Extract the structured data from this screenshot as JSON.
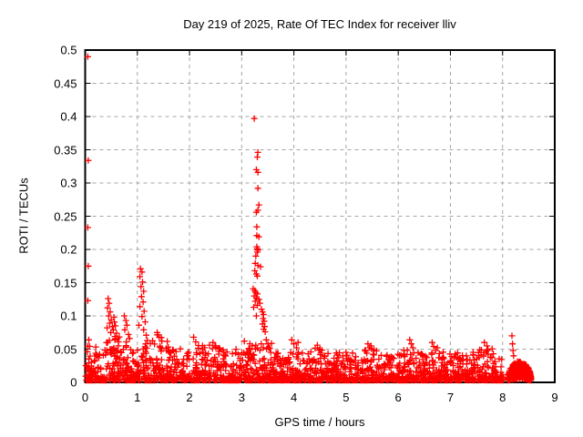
{
  "colors": {
    "background": "#ffffff",
    "series": "#ff0000",
    "grid": "#a6a6a6",
    "border": "#000000",
    "text": "#000000"
  },
  "chart_data": {
    "type": "scatter",
    "title": "Day 219 of 2025, Rate Of TEC Index for receiver lliv",
    "xlabel": "GPS time / hours",
    "ylabel": "ROTI / TECUs",
    "xlim": [
      0,
      9
    ],
    "ylim": [
      0,
      0.5
    ],
    "xticks": [
      0,
      1,
      2,
      3,
      4,
      5,
      6,
      7,
      8,
      9
    ],
    "xtick_labels": [
      "0",
      "1",
      "2",
      "3",
      "4",
      "5",
      "6",
      "7",
      "8",
      "9"
    ],
    "yticks": [
      0,
      0.05,
      0.1,
      0.15,
      0.2,
      0.25,
      0.3,
      0.35,
      0.4,
      0.45,
      0.5
    ],
    "ytick_labels": [
      "0",
      "0.05",
      "0.1",
      "0.15",
      "0.2",
      "0.25",
      "0.3",
      "0.35",
      "0.4",
      "0.45",
      "0.5"
    ],
    "grid": true,
    "grid_style": "dashed",
    "legend": "none",
    "marker": {
      "symbol": "plus",
      "color": "#ff0000",
      "size": 7
    },
    "series": [
      {
        "name": "ROTI",
        "color": "#ff0000",
        "outlier_points": [
          [
            0.05,
            0.49
          ],
          [
            0.06,
            0.334
          ],
          [
            0.05,
            0.233
          ],
          [
            0.06,
            0.175
          ],
          [
            0.05,
            0.123
          ],
          [
            0.07,
            0.064
          ],
          [
            0.04,
            0.046
          ],
          [
            0.44,
            0.126
          ],
          [
            0.46,
            0.119
          ],
          [
            0.43,
            0.112
          ],
          [
            0.48,
            0.106
          ],
          [
            0.45,
            0.1
          ],
          [
            0.5,
            0.094
          ],
          [
            0.47,
            0.089
          ],
          [
            0.52,
            0.084
          ],
          [
            0.55,
            0.098
          ],
          [
            0.56,
            0.091
          ],
          [
            0.58,
            0.085
          ],
          [
            0.54,
            0.079
          ],
          [
            0.6,
            0.074
          ],
          [
            0.57,
            0.069
          ],
          [
            0.62,
            0.066
          ],
          [
            0.64,
            0.061
          ],
          [
            0.49,
            0.075
          ],
          [
            0.42,
            0.082
          ],
          [
            0.75,
            0.1
          ],
          [
            0.78,
            0.093
          ],
          [
            0.8,
            0.086
          ],
          [
            0.76,
            0.079
          ],
          [
            0.83,
            0.072
          ],
          [
            0.85,
            0.066
          ],
          [
            0.79,
            0.061
          ],
          [
            1.06,
            0.171
          ],
          [
            1.09,
            0.166
          ],
          [
            1.05,
            0.159
          ],
          [
            1.1,
            0.151
          ],
          [
            1.07,
            0.144
          ],
          [
            1.12,
            0.137
          ],
          [
            1.08,
            0.129
          ],
          [
            1.11,
            0.121
          ],
          [
            1.05,
            0.114
          ],
          [
            1.13,
            0.107
          ],
          [
            1.09,
            0.099
          ],
          [
            1.15,
            0.091
          ],
          [
            1.03,
            0.086
          ],
          [
            1.12,
            0.079
          ],
          [
            1.17,
            0.071
          ],
          [
            1.19,
            0.063
          ],
          [
            1.38,
            0.075
          ],
          [
            1.42,
            0.068
          ],
          [
            1.47,
            0.062
          ],
          [
            2.08,
            0.068
          ],
          [
            2.12,
            0.061
          ],
          [
            2.45,
            0.06
          ],
          [
            2.5,
            0.055
          ],
          [
            3.05,
            0.062
          ],
          [
            3.24,
            0.397
          ],
          [
            3.31,
            0.346
          ],
          [
            3.3,
            0.339
          ],
          [
            3.28,
            0.32
          ],
          [
            3.31,
            0.316
          ],
          [
            3.31,
            0.292
          ],
          [
            3.33,
            0.267
          ],
          [
            3.31,
            0.259
          ],
          [
            3.28,
            0.256
          ],
          [
            3.29,
            0.234
          ],
          [
            3.29,
            0.221
          ],
          [
            3.33,
            0.219
          ],
          [
            3.29,
            0.204
          ],
          [
            3.3,
            0.201
          ],
          [
            3.31,
            0.199
          ],
          [
            3.3,
            0.196
          ],
          [
            3.27,
            0.19
          ],
          [
            3.26,
            0.179
          ],
          [
            3.31,
            0.176
          ],
          [
            3.36,
            0.174
          ],
          [
            3.25,
            0.168
          ],
          [
            3.28,
            0.163
          ],
          [
            3.3,
            0.16
          ],
          [
            3.22,
            0.141
          ],
          [
            3.25,
            0.138
          ],
          [
            3.27,
            0.135
          ],
          [
            3.3,
            0.133
          ],
          [
            3.24,
            0.13
          ],
          [
            3.28,
            0.127
          ],
          [
            3.33,
            0.125
          ],
          [
            3.26,
            0.122
          ],
          [
            3.35,
            0.119
          ],
          [
            3.3,
            0.116
          ],
          [
            3.23,
            0.113
          ],
          [
            3.38,
            0.11
          ],
          [
            3.4,
            0.106
          ],
          [
            3.42,
            0.102
          ],
          [
            3.28,
            0.1
          ],
          [
            3.41,
            0.096
          ],
          [
            3.43,
            0.092
          ],
          [
            3.4,
            0.088
          ],
          [
            3.44,
            0.084
          ],
          [
            3.42,
            0.08
          ],
          [
            3.45,
            0.076
          ],
          [
            3.27,
            0.056
          ],
          [
            3.47,
            0.064
          ],
          [
            3.5,
            0.058
          ],
          [
            3.52,
            0.052
          ],
          [
            3.96,
            0.064
          ],
          [
            4.0,
            0.058
          ],
          [
            4.05,
            0.052
          ],
          [
            4.08,
            0.06
          ],
          [
            4.45,
            0.056
          ],
          [
            4.5,
            0.05
          ],
          [
            5.42,
            0.058
          ],
          [
            5.45,
            0.052
          ],
          [
            5.48,
            0.055
          ],
          [
            6.22,
            0.064
          ],
          [
            6.25,
            0.058
          ],
          [
            6.28,
            0.052
          ],
          [
            6.65,
            0.06
          ],
          [
            6.68,
            0.054
          ],
          [
            6.75,
            0.052
          ],
          [
            7.65,
            0.06
          ],
          [
            7.7,
            0.055
          ],
          [
            8.18,
            0.07
          ],
          [
            8.19,
            0.058
          ],
          [
            8.2,
            0.048
          ],
          [
            8.21,
            0.04
          ]
        ],
        "dense_band": {
          "description": "continuous dense band of points hugging 0-0.05 TECUs from hour 0.01 to 8.02",
          "y_min": 0.003,
          "points_per_hour": 240,
          "tail_exponent": 2.8,
          "segments": [
            [
              0.01,
              0.35,
              0.055
            ],
            [
              0.35,
              0.75,
              0.07
            ],
            [
              0.75,
              1.0,
              0.056
            ],
            [
              1.0,
              1.25,
              0.062
            ],
            [
              1.25,
              1.6,
              0.072
            ],
            [
              1.6,
              2.0,
              0.052
            ],
            [
              2.0,
              2.6,
              0.056
            ],
            [
              2.6,
              3.1,
              0.05
            ],
            [
              3.1,
              3.6,
              0.06
            ],
            [
              3.6,
              4.3,
              0.046
            ],
            [
              4.3,
              4.6,
              0.053
            ],
            [
              4.6,
              5.3,
              0.046
            ],
            [
              5.3,
              5.6,
              0.051
            ],
            [
              5.6,
              6.1,
              0.046
            ],
            [
              6.1,
              6.4,
              0.053
            ],
            [
              6.4,
              6.6,
              0.046
            ],
            [
              6.6,
              6.8,
              0.051
            ],
            [
              6.8,
              7.5,
              0.046
            ],
            [
              7.5,
              7.8,
              0.051
            ],
            [
              7.8,
              8.02,
              0.044
            ]
          ]
        },
        "end_blob": {
          "description": "isolated dense round cluster after a small data gap",
          "x0": 8.1,
          "x1": 8.55,
          "x_center": 8.325,
          "y_max": 0.03,
          "n": 300
        }
      }
    ],
    "seed": 42
  }
}
